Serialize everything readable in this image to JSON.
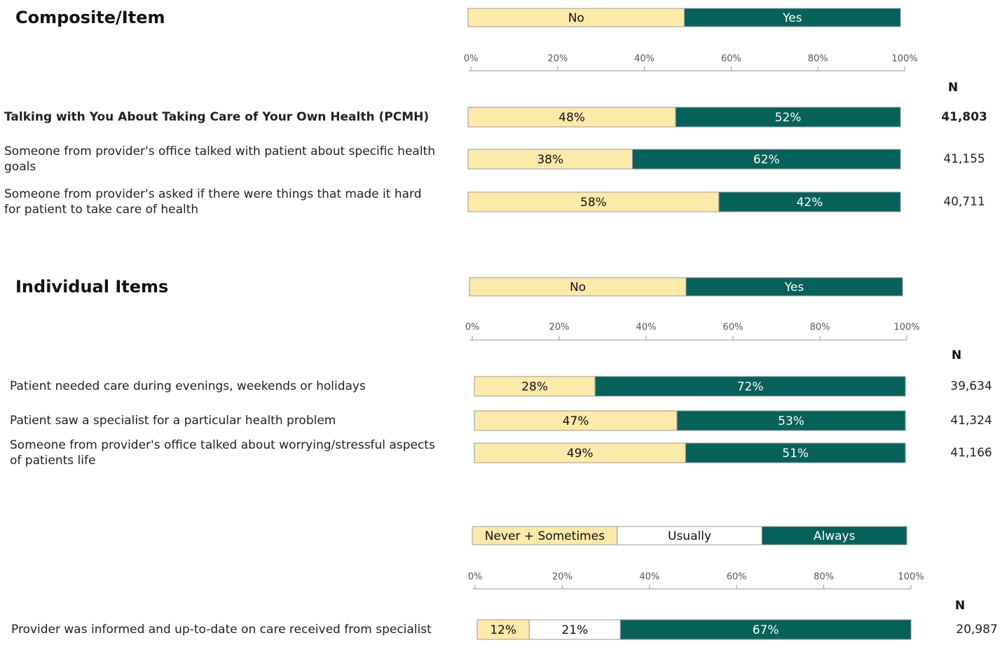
{
  "chart_data": [
    {
      "type": "bar",
      "orientation": "horizontal",
      "stacked": true,
      "title": "Composite/Item",
      "categories": [
        "Talking with You About Taking Care of Your Own Health (PCMH)",
        "Someone from provider's office talked with patient about specific health goals",
        "Someone from provider's asked if there were things that made it hard for patient to take care of health"
      ],
      "series": [
        {
          "name": "No",
          "color": "#fde9aa",
          "values": [
            48,
            38,
            58
          ],
          "value_labels": [
            "48%",
            "38%",
            "58%"
          ]
        },
        {
          "name": "Yes",
          "color": "#07615b",
          "values": [
            52,
            62,
            42
          ],
          "value_labels": [
            "52%",
            "62%",
            "42%"
          ]
        }
      ],
      "xlim": [
        0,
        100
      ],
      "xticks": [
        {
          "value": 0,
          "label": "0%"
        },
        {
          "value": 20,
          "label": "20%"
        },
        {
          "value": 40,
          "label": "40%"
        },
        {
          "value": 60,
          "label": "60%"
        },
        {
          "value": 80,
          "label": "80%"
        },
        {
          "value": 100,
          "label": "100%"
        }
      ],
      "n_label": "N",
      "n": [
        "41,803",
        "41,155",
        "40,711"
      ]
    },
    {
      "type": "bar",
      "orientation": "horizontal",
      "stacked": true,
      "title": "Individual Items",
      "categories": [
        "Patient needed care during evenings, weekends or holidays",
        "Patient saw a specialist for a particular health problem",
        "Someone from provider's office talked about worrying/stressful aspects of patients life"
      ],
      "series": [
        {
          "name": "No",
          "color": "#fde9aa",
          "values": [
            28,
            47,
            49
          ],
          "value_labels": [
            "28%",
            "47%",
            "49%"
          ]
        },
        {
          "name": "Yes",
          "color": "#07615b",
          "values": [
            72,
            53,
            51
          ],
          "value_labels": [
            "72%",
            "53%",
            "51%"
          ]
        }
      ],
      "xlim": [
        0,
        100
      ],
      "xticks": [
        {
          "value": 0,
          "label": "0%"
        },
        {
          "value": 20,
          "label": "20%"
        },
        {
          "value": 40,
          "label": "40%"
        },
        {
          "value": 60,
          "label": "60%"
        },
        {
          "value": 80,
          "label": "80%"
        },
        {
          "value": 100,
          "label": "100%"
        }
      ],
      "n_label": "N",
      "n": [
        "39,634",
        "41,324",
        "41,166"
      ]
    },
    {
      "type": "bar",
      "orientation": "horizontal",
      "stacked": true,
      "categories": [
        "Provider was informed and up-to-date on care received from specialist"
      ],
      "series": [
        {
          "name": "Never + Sometimes",
          "color": "#fde9aa",
          "values": [
            12
          ],
          "value_labels": [
            "12%"
          ]
        },
        {
          "name": "Usually",
          "color": "#ffffff",
          "values": [
            21
          ],
          "value_labels": [
            "21%"
          ]
        },
        {
          "name": "Always",
          "color": "#07615b",
          "values": [
            67
          ],
          "value_labels": [
            "67%"
          ]
        }
      ],
      "xlim": [
        0,
        100
      ],
      "xticks": [
        {
          "value": 0,
          "label": "0%"
        },
        {
          "value": 20,
          "label": "20%"
        },
        {
          "value": 40,
          "label": "40%"
        },
        {
          "value": 60,
          "label": "60%"
        },
        {
          "value": 80,
          "label": "80%"
        },
        {
          "value": 100,
          "label": "100%"
        }
      ],
      "n_label": "N",
      "n": [
        "20,987"
      ]
    }
  ]
}
